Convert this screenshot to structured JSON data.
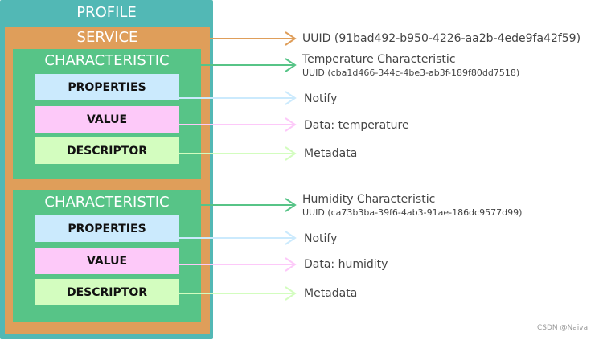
{
  "profile": {
    "title": "PROFILE",
    "color": "#52b8b5"
  },
  "service": {
    "title": "SERVICE",
    "color": "#df9e5a",
    "uuid": "UUID (91bad492-b950-4226-aa2b-4ede9fa42f59)"
  },
  "characteristics": [
    {
      "title": "CHARACTERISTIC",
      "name": "Temperature Characteristic",
      "uuid": "UUID (cba1d466-344c-4be3-ab3f-189f80dd7518)",
      "properties": "PROPERTIES",
      "value": "VALUE",
      "descriptor": "DESCRIPTOR",
      "properties_note": "Notify",
      "value_note": "Data: temperature",
      "descriptor_note": "Metadata"
    },
    {
      "title": "CHARACTERISTIC",
      "name": "Humidity Characteristic",
      "uuid": "UUID (ca73b3ba-39f6-4ab3-91ae-186dc9577d99)",
      "properties": "PROPERTIES",
      "value": "VALUE",
      "descriptor": "DESCRIPTOR",
      "properties_note": "Notify",
      "value_note": "Data: humidity",
      "descriptor_note": "Metadata"
    }
  ],
  "colors": {
    "characteristic": "#57c487",
    "properties": "#cbeafd",
    "value": "#fdc9f9",
    "descriptor": "#d3fdbf"
  },
  "watermark": "CSDN @Naiva"
}
